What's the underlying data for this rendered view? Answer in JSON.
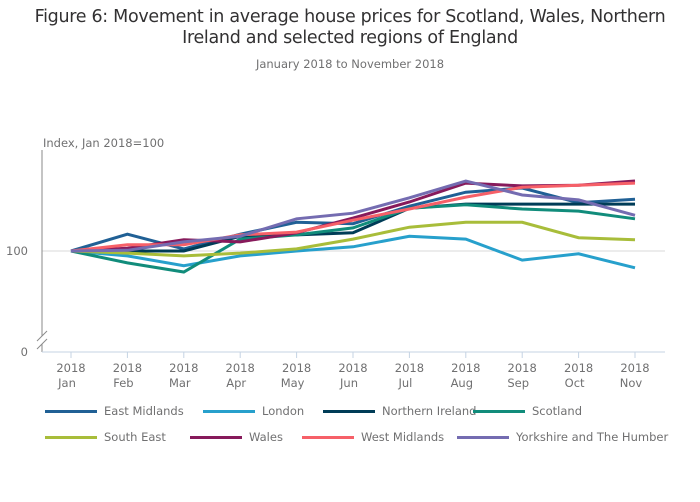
{
  "title": "Figure 6: Movement in average house prices for Scotland, Wales, Northern Ireland and selected regions of England",
  "title_line1": "Figure 6: Movement in average house prices for Scotland, Wales, Northern",
  "title_line2": "Ireland and selected regions of England",
  "subtitle": "January 2018 to November 2018",
  "chart_data": {
    "type": "line",
    "title": "Figure 6: Movement in average house prices for Scotland, Wales, Northern Ireland and selected regions of England",
    "subtitle": "January 2018 to November 2018",
    "xlabel": "",
    "ylabel": "Index, Jan 2018=100",
    "x": [
      "2018 Jan",
      "2018 Feb",
      "2018 Mar",
      "2018 Apr",
      "2018 May",
      "2018 Jun",
      "2018 Jul",
      "2018 Aug",
      "2018 Sep",
      "2018 Oct",
      "2018 Nov"
    ],
    "x_tick_year": [
      "2018",
      "2018",
      "2018",
      "2018",
      "2018",
      "2018",
      "2018",
      "2018",
      "2018",
      "2018",
      "2018"
    ],
    "x_tick_month": [
      "Jan",
      "Feb",
      "Mar",
      "Apr",
      "May",
      "Jun",
      "Jul",
      "Aug",
      "Sep",
      "Oct",
      "Nov"
    ],
    "y_ticks": [
      0,
      100
    ],
    "y_tick_labels": [
      "0",
      "100"
    ],
    "y_axis_break": true,
    "ylim": [
      96,
      114
    ],
    "grid": "horizontal at 100",
    "legend_position": "bottom",
    "series": [
      {
        "name": "East Midlands",
        "color": "#206095",
        "values": [
          100,
          102.4,
          100.3,
          102.4,
          104.1,
          103.9,
          106.4,
          108.4,
          109.0,
          106.9,
          107.4
        ]
      },
      {
        "name": "London",
        "color": "#27A0CC",
        "values": [
          100,
          99.3,
          97.9,
          99.3,
          100.0,
          100.6,
          102.1,
          101.7,
          98.7,
          99.6,
          97.6
        ]
      },
      {
        "name": "Northern Ireland",
        "color": "#003C57",
        "values": [
          100,
          100.0,
          100.0,
          102.1,
          102.3,
          102.6,
          106.1,
          106.7,
          106.7,
          106.7,
          106.7
        ]
      },
      {
        "name": "Scotland",
        "color": "#118C7B",
        "values": [
          100,
          98.3,
          97.0,
          101.7,
          102.3,
          103.3,
          106.1,
          106.6,
          106.0,
          105.7,
          104.6
        ]
      },
      {
        "name": "South East",
        "color": "#A8BD3A",
        "values": [
          100,
          99.7,
          99.3,
          99.7,
          100.3,
          101.7,
          103.4,
          104.1,
          104.1,
          101.9,
          101.6
        ]
      },
      {
        "name": "Wales",
        "color": "#871A5B",
        "values": [
          100,
          100.4,
          101.6,
          101.3,
          102.6,
          104.7,
          107.0,
          109.7,
          109.3,
          109.4,
          110.0
        ]
      },
      {
        "name": "West Midlands",
        "color": "#F66068",
        "values": [
          100,
          100.9,
          100.9,
          102.3,
          102.7,
          104.4,
          106.0,
          107.7,
          109.1,
          109.4,
          109.7
        ]
      },
      {
        "name": "Yorkshire and The Humber",
        "color": "#746CB1",
        "values": [
          100,
          100.1,
          101.3,
          102.1,
          104.6,
          105.4,
          107.6,
          110.0,
          108.0,
          107.3,
          105.1
        ]
      }
    ]
  },
  "legend": [
    {
      "label": "East Midlands",
      "color": "#206095"
    },
    {
      "label": "London",
      "color": "#27A0CC"
    },
    {
      "label": "Northern Ireland",
      "color": "#003C57"
    },
    {
      "label": "Scotland",
      "color": "#118C7B"
    },
    {
      "label": "South East",
      "color": "#A8BD3A"
    },
    {
      "label": "Wales",
      "color": "#871A5B"
    },
    {
      "label": "West Midlands",
      "color": "#F66068"
    },
    {
      "label": "Yorkshire and The Humber",
      "color": "#746CB1"
    }
  ]
}
